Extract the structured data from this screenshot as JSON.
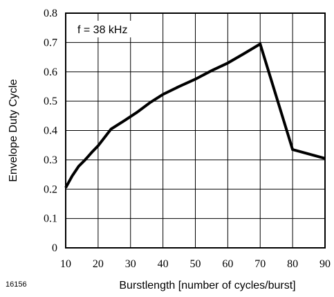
{
  "chart_data": {
    "type": "line",
    "title": "",
    "xlabel": "Burstlength [number of cycles/burst]",
    "ylabel": "Envelope Duty Cycle",
    "xlim": [
      10,
      90
    ],
    "ylim": [
      0,
      0.8
    ],
    "xticks": [
      "10",
      "20",
      "30",
      "40",
      "50",
      "60",
      "70",
      "80",
      "90"
    ],
    "yticks": [
      "0",
      "0.1",
      "0.2",
      "0.3",
      "0.4",
      "0.5",
      "0.6",
      "0.7",
      "0.8"
    ],
    "grid": true,
    "annotation": "f = 38 kHz",
    "figure_number": "16156",
    "series": [
      {
        "color": "#000000",
        "x": [
          10,
          12,
          14,
          16,
          18,
          20,
          24,
          28,
          32,
          36,
          40,
          45,
          50,
          55,
          60,
          65,
          70,
          80,
          90
        ],
        "y": [
          0.205,
          0.245,
          0.278,
          0.3,
          0.325,
          0.348,
          0.405,
          0.433,
          0.462,
          0.495,
          0.523,
          0.55,
          0.575,
          0.604,
          0.63,
          0.662,
          0.695,
          0.335,
          0.305
        ]
      }
    ]
  }
}
